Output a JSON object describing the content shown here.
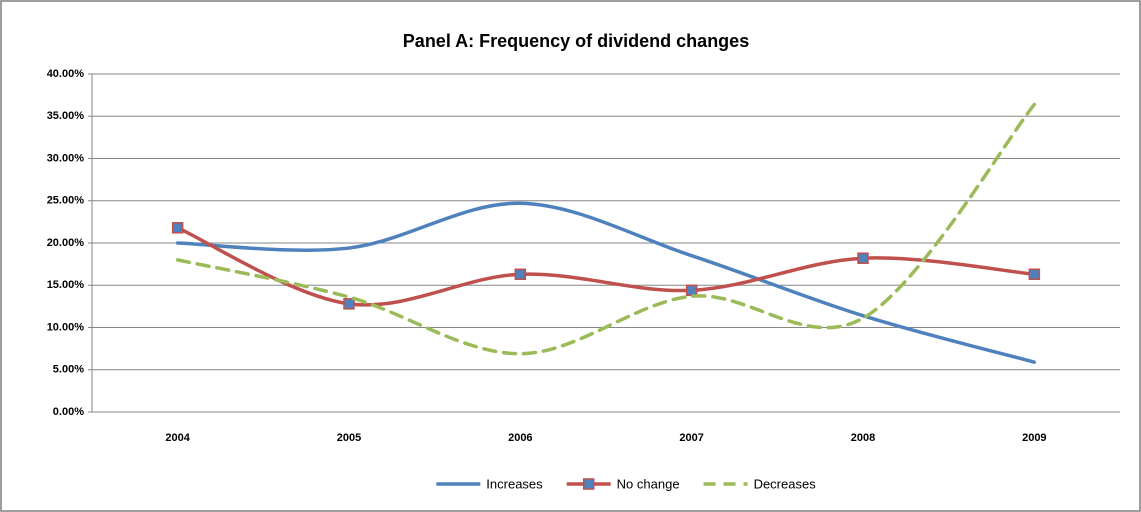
{
  "chart_data": {
    "type": "line",
    "title": "Panel A: Frequency of dividend changes",
    "categories": [
      "2004",
      "2005",
      "2006",
      "2007",
      "2008",
      "2009"
    ],
    "series": [
      {
        "name": "Increases",
        "color": "#4f81bd",
        "line_style": "solid",
        "values": [
          20.0,
          19.4,
          24.7,
          18.5,
          11.4,
          5.9
        ]
      },
      {
        "name": "No change",
        "color": "#c0504d",
        "line_style": "solid",
        "marker": "square",
        "marker_color": "#4f81bd",
        "values": [
          21.8,
          12.8,
          16.3,
          14.4,
          18.2,
          16.3
        ]
      },
      {
        "name": "Decreases",
        "color": "#9bbb59",
        "line_style": "dashed",
        "values": [
          18.0,
          13.6,
          6.9,
          13.7,
          11.1,
          36.4
        ]
      }
    ],
    "ylim": [
      0,
      40
    ],
    "yticks": [
      {
        "value": 0,
        "label": "0.00%"
      },
      {
        "value": 5,
        "label": "5.00%"
      },
      {
        "value": 10,
        "label": "10.00%"
      },
      {
        "value": 15,
        "label": "15.00%"
      },
      {
        "value": 20,
        "label": "20.00%"
      },
      {
        "value": 25,
        "label": "25.00%"
      },
      {
        "value": 30,
        "label": "30.00%"
      },
      {
        "value": 35,
        "label": "35.00%"
      },
      {
        "value": 40,
        "label": "40.00%"
      }
    ],
    "grid": true,
    "smooth": true,
    "legend": "bottom"
  }
}
